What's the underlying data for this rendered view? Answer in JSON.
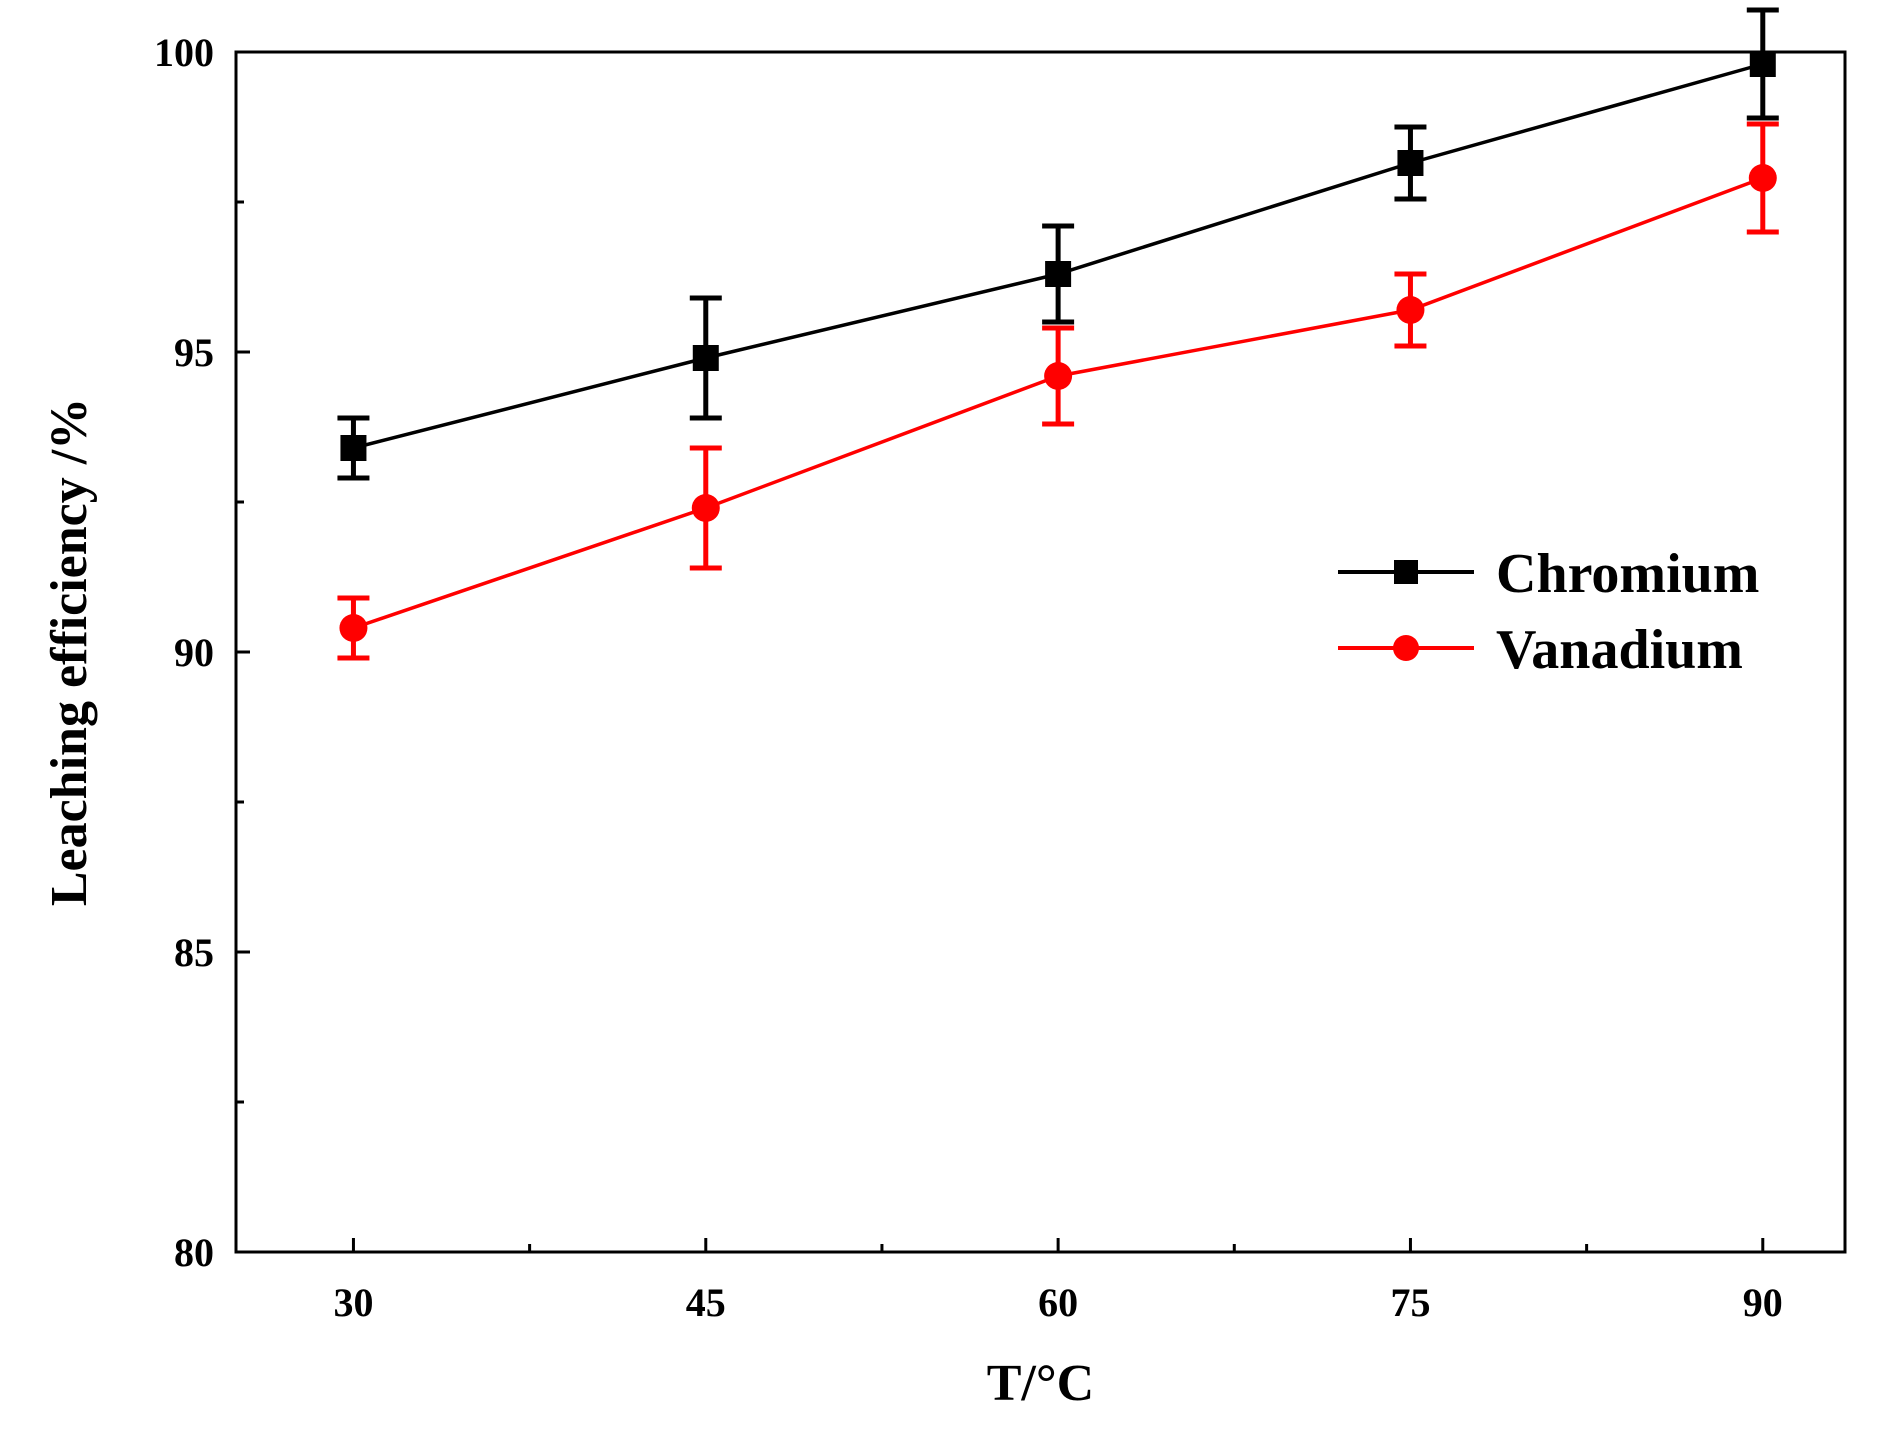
{
  "chart_data": {
    "type": "line",
    "title": "",
    "xlabel": "T/°C",
    "ylabel": "Leaching efficiency /%",
    "x": [
      30,
      45,
      60,
      75,
      90
    ],
    "x_ticks": [
      30,
      45,
      60,
      75,
      90
    ],
    "xlim": [
      25,
      93.5
    ],
    "ylim": [
      80,
      100
    ],
    "y_ticks": [
      80,
      85,
      90,
      95,
      100
    ],
    "grid": false,
    "legend_position": "right-middle",
    "series": [
      {
        "name": "Chromium",
        "color": "#000000",
        "marker": "square",
        "values": [
          93.4,
          94.9,
          96.3,
          98.15,
          99.8
        ],
        "errors": [
          0.5,
          1.0,
          0.8,
          0.6,
          0.9
        ]
      },
      {
        "name": "Vanadium",
        "color": "#ff0000",
        "marker": "circle",
        "values": [
          90.4,
          92.4,
          94.6,
          95.7,
          97.9
        ],
        "errors": [
          0.5,
          1.0,
          0.8,
          0.6,
          0.9
        ]
      }
    ]
  }
}
